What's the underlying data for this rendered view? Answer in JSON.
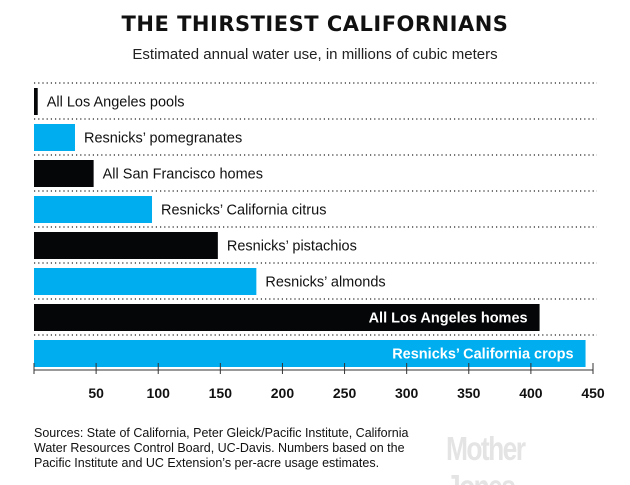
{
  "chart_data": {
    "type": "bar",
    "orientation": "horizontal",
    "title": "THE THIRSTIEST CALIFORNIANS",
    "subtitle": "Estimated annual water use, in millions of cubic meters",
    "categories": [
      "All Los Angeles pools",
      "Resnicks’ pomegranates",
      "All San Francisco homes",
      "Resnicks’ California citrus",
      "Resnicks’ pistachios",
      "Resnicks’ almonds",
      "All Los Angeles homes",
      "Resnicks’ California crops"
    ],
    "values": [
      3,
      33,
      48,
      95,
      148,
      179,
      407,
      444
    ],
    "bar_colors": [
      "#050608",
      "#00aeef",
      "#050608",
      "#00aeef",
      "#050608",
      "#00aeef",
      "#050608",
      "#00aeef"
    ],
    "xlim": [
      0,
      450
    ],
    "xticks": [
      50,
      100,
      150,
      200,
      250,
      300,
      350,
      400,
      450
    ],
    "xlabel": "",
    "ylabel": "",
    "grid": "dotted row separators",
    "legend": "none"
  },
  "source": "Sources: State of California, Peter Gleick/Pacific Institute, California Water Resources Control Board, UC-Davis. Numbers based on the Pacific Institute and UC Extension’s per-acre usage estimates.",
  "logo": "MotherJones"
}
